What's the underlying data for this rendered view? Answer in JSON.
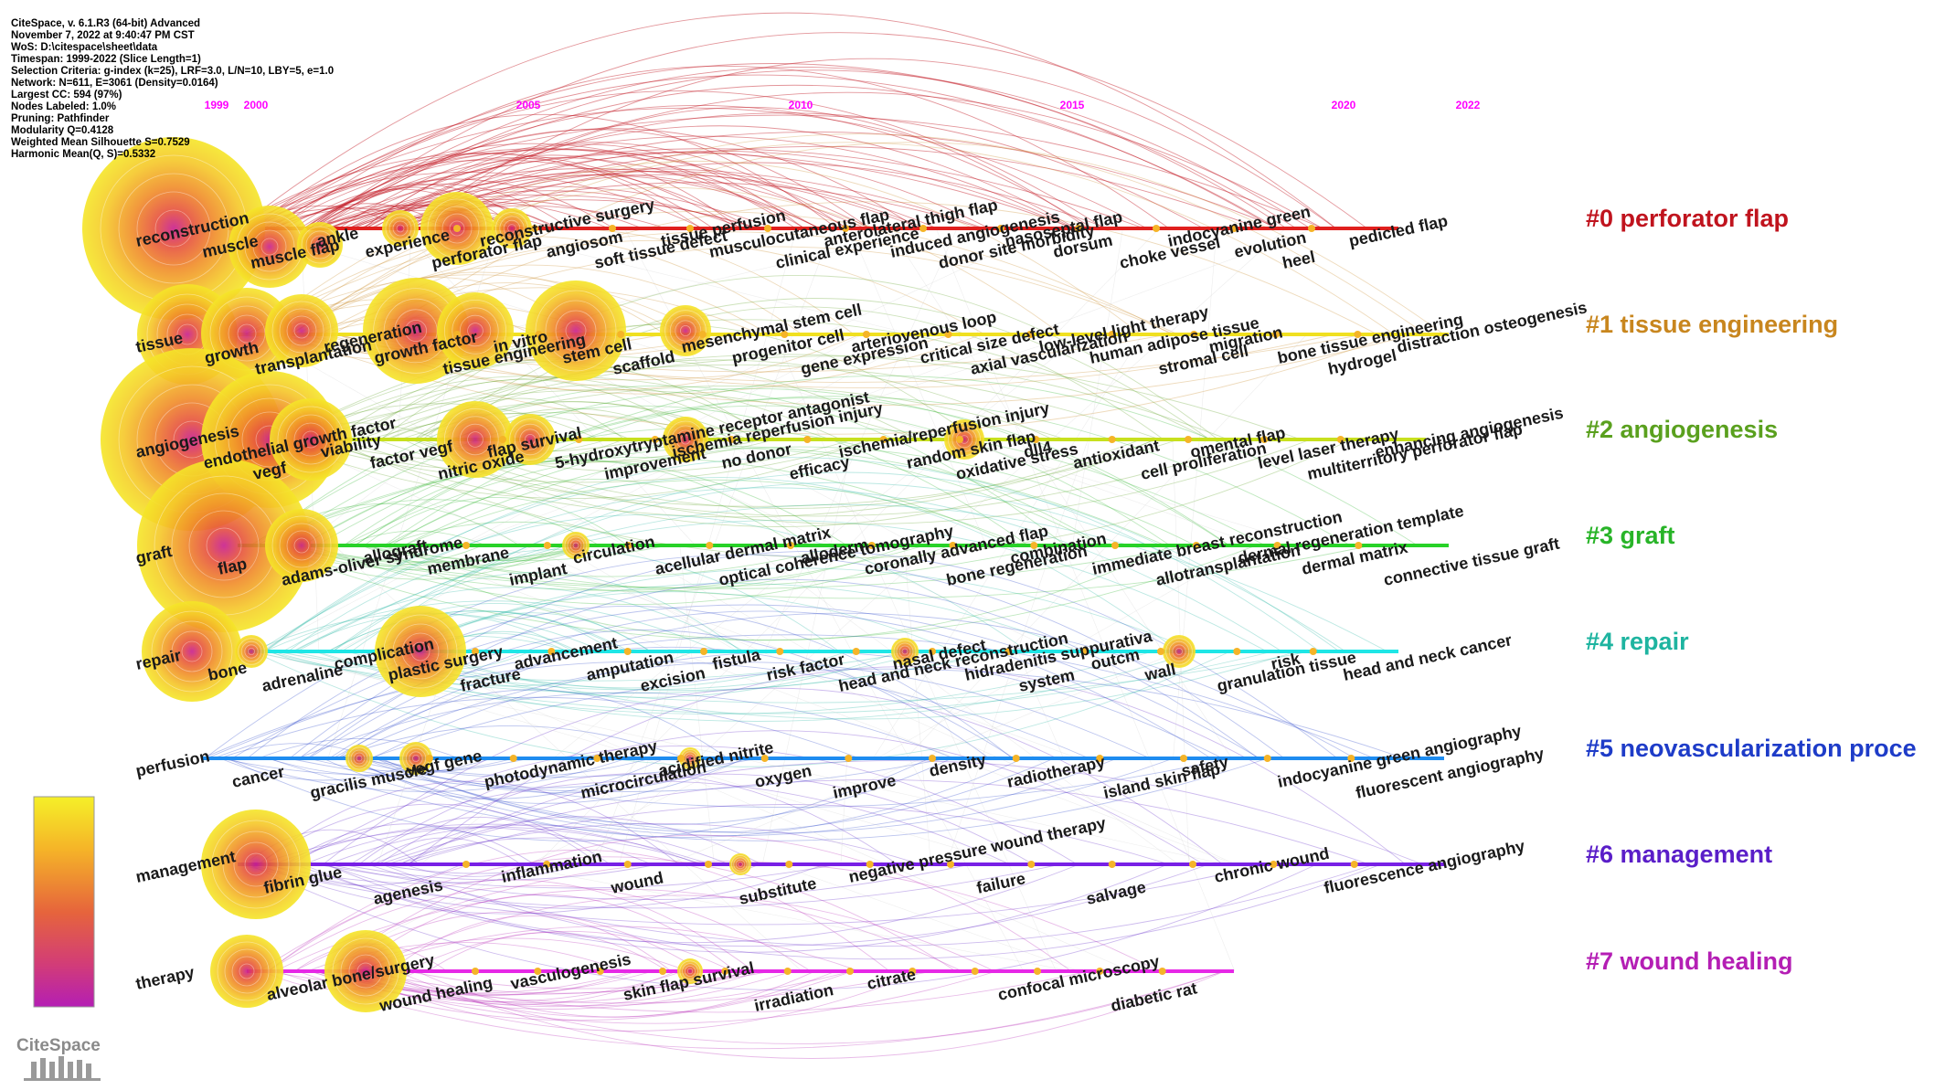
{
  "info_lines": [
    "CiteSpace, v. 6.1.R3 (64-bit) Advanced",
    "November 7, 2022 at 9:40:47 PM CST",
    "WoS: D:\\citespace\\sheet\\data",
    "Timespan: 1999-2022 (Slice Length=1)",
    "Selection Criteria: g-index (k=25), LRF=3.0, L/N=10, LBY=5, e=1.0",
    "Network: N=611, E=3061 (Density=0.0164)",
    "Largest CC: 594 (97%)",
    "Nodes Labeled: 1.0%",
    "Pruning: Pathfinder",
    "Modularity Q=0.4128",
    "Weighted Mean Silhouette S=0.7529",
    "Harmonic Mean(Q, S)=0.5332"
  ],
  "years": [
    "1999",
    "2000",
    "2005",
    "2010",
    "2015",
    "2020",
    "2022"
  ],
  "logo_text": "CiteSpace",
  "legend_label": "",
  "clusters": [
    {
      "label": "#0 perforator flap",
      "color": "#c0141e",
      "line": "#e0201e",
      "keywords": [
        "reconstruction",
        "muscle",
        "muscle flap",
        "ankle",
        "experience",
        "perforator flap",
        "reconstructive surgery",
        "angiosom",
        "soft tissue defect",
        "tissue perfusion",
        "musculocutaneous flap",
        "clinical experience",
        "anterolateral thigh flap",
        "induced angiogenesis",
        "donor site morbidity",
        "nasoseptal flap",
        "dorsum",
        "choke vessel",
        "indocyanine green",
        "evolution",
        "heel",
        "pedicled flap"
      ]
    },
    {
      "label": "#1 tissue engineering",
      "color": "#c8861e",
      "line": "#f0e020",
      "keywords": [
        "tissue",
        "growth",
        "transplantation",
        "regeneration",
        "growth factor",
        "tissue engineering",
        "in vitro",
        "stem cell",
        "scaffold",
        "mesenchymal stem cell",
        "progenitor cell",
        "gene expression",
        "arteriovenous loop",
        "critical size defect",
        "axial vascularization",
        "low-level light therapy",
        "human adipose tissue",
        "stromal cell",
        "migration",
        "bone tissue engineering",
        "hydrogel",
        "distraction osteogenesis"
      ]
    },
    {
      "label": "#2 angiogenesis",
      "color": "#5aa01e",
      "line": "#c8e01e",
      "keywords": [
        "angiogenesis",
        "endothelial growth factor",
        "vegf",
        "viability",
        "factor vegf",
        "nitric oxide",
        "flap survival",
        "5-hydroxytryptamine receptor antagonist",
        "improvement",
        "ischemia reperfusion injury",
        "no donor",
        "efficacy",
        "ischemia/reperfusion injury",
        "random skin flap",
        "oxidative stress",
        "dll4",
        "antioxidant",
        "cell proliferation",
        "omental flap",
        "level laser therapy",
        "multiterritory perforator flap",
        "enhancing angiogenesis"
      ]
    },
    {
      "label": "#3 graft",
      "color": "#28b428",
      "line": "#28d228",
      "keywords": [
        "graft",
        "flap",
        "adams-oliver syndrome",
        "allograft",
        "membrane",
        "implant",
        "circulation",
        "acellular dermal matrix",
        "optical coherence tomography",
        "alloderm",
        "coronally advanced flap",
        "bone regeneration",
        "combination",
        "immediate breast reconstruction",
        "allotransplantation",
        "dermal regeneration template",
        "dermal matrix",
        "connective tissue graft"
      ]
    },
    {
      "label": "#4 repair",
      "color": "#1eb4a0",
      "line": "#1ee6e6",
      "keywords": [
        "repair",
        "bone",
        "adrenaline",
        "complication",
        "plastic surgery",
        "fracture",
        "advancement",
        "amputation",
        "excision",
        "fistula",
        "risk factor",
        "head and neck reconstruction",
        "nasal defect",
        "hidradenitis suppurativa",
        "system",
        "outcm",
        "wall",
        "granulation tissue",
        "risk",
        "head and neck cancer"
      ]
    },
    {
      "label": "#5 neovascularization proce",
      "color": "#1e3cc8",
      "line": "#1e8cf0",
      "keywords": [
        "perfusion",
        "cancer",
        "gracilis muscle",
        "vegf gene",
        "photodynamic therapy",
        "microcirculation",
        "acidified nitrite",
        "oxygen",
        "improve",
        "density",
        "radiotherapy",
        "island skin flap",
        "safety",
        "indocyanine green angiography",
        "fluorescent angiography"
      ]
    },
    {
      "label": "#6 management",
      "color": "#5a1ec8",
      "line": "#7820e6",
      "keywords": [
        "management",
        "fibrin glue",
        "agenesis",
        "inflammation",
        "wound",
        "substitute",
        "negative pressure wound therapy",
        "failure",
        "salvage",
        "chronic wound",
        "fluorescence angiography"
      ]
    },
    {
      "label": "#7 wound healing",
      "color": "#b41eb4",
      "line": "#e628e6",
      "keywords": [
        "therapy",
        "alveolar bone/surgery",
        "wound healing",
        "vasculogenesis",
        "skin flap survival",
        "irradiation",
        "citrate",
        "confocal microscopy",
        "diabetic rat"
      ]
    }
  ]
}
